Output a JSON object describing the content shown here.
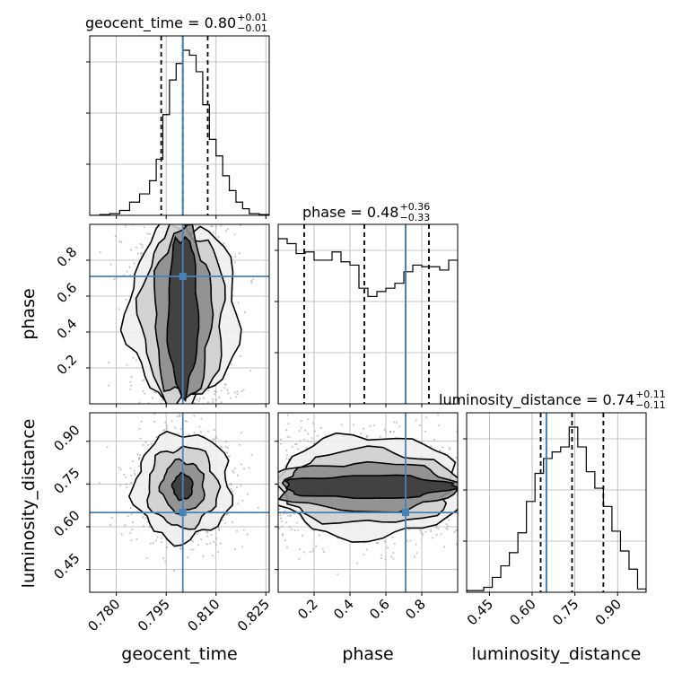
{
  "chart_data": {
    "type": "corner",
    "parameters": [
      "geocent_time",
      "phase",
      "luminosity_distance"
    ],
    "ranges": [
      [
        0.772,
        0.826
      ],
      [
        0.0,
        1.0
      ],
      [
        0.37,
        1.0
      ]
    ],
    "truths": [
      0.8,
      0.71,
      0.65
    ],
    "truth_color": "#4682b4",
    "grid": true,
    "titles": [
      {
        "label": "geocent_time",
        "value": "0.80",
        "plus": "+0.01",
        "minus": "−0.01"
      },
      {
        "label": "phase",
        "value": "0.48",
        "plus": "+0.36",
        "minus": "−0.33"
      },
      {
        "label": "luminosity_distance",
        "value": "0.74",
        "plus": "+0.11",
        "minus": "−0.11"
      }
    ],
    "ticks": [
      {
        "values": [
          0.78,
          0.795,
          0.81,
          0.825
        ],
        "labels": [
          "0.780",
          "0.795",
          "0.810",
          "0.825"
        ]
      },
      {
        "values": [
          0.2,
          0.4,
          0.6,
          0.8
        ],
        "labels": [
          "0.2",
          "0.4",
          "0.6",
          "0.8"
        ]
      },
      {
        "values": [
          0.45,
          0.6,
          0.75,
          0.9
        ],
        "labels": [
          "0.45",
          "0.60",
          "0.75",
          "0.90"
        ]
      }
    ],
    "quantiles": [
      [
        0.7935,
        0.8,
        0.8075
      ],
      [
        0.145,
        0.48,
        0.84
      ],
      [
        0.63,
        0.74,
        0.85
      ]
    ],
    "histograms": [
      {
        "edges": [
          0.772,
          0.775,
          0.778,
          0.781,
          0.784,
          0.787,
          0.79,
          0.792,
          0.794,
          0.796,
          0.798,
          0.8,
          0.802,
          0.804,
          0.806,
          0.808,
          0.81,
          0.812,
          0.814,
          0.816,
          0.818,
          0.82,
          0.823,
          0.826
        ],
        "counts": [
          0,
          0.005,
          0.01,
          0.03,
          0.08,
          0.13,
          0.21,
          0.34,
          0.61,
          0.82,
          0.92,
          1.0,
          0.97,
          0.87,
          0.67,
          0.46,
          0.36,
          0.24,
          0.15,
          0.08,
          0.04,
          0.01,
          0.005
        ]
      },
      {
        "edges": [
          0.0,
          0.05,
          0.1,
          0.15,
          0.2,
          0.25,
          0.3,
          0.35,
          0.4,
          0.45,
          0.5,
          0.55,
          0.6,
          0.65,
          0.7,
          0.75,
          0.8,
          0.85,
          0.9,
          0.95,
          1.0
        ],
        "counts": [
          1.0,
          0.97,
          0.91,
          0.92,
          0.87,
          0.87,
          0.92,
          0.86,
          0.84,
          0.7,
          0.65,
          0.68,
          0.7,
          0.73,
          0.8,
          0.84,
          0.83,
          0.83,
          0.81,
          0.87
        ]
      },
      {
        "edges": [
          0.37,
          0.4,
          0.43,
          0.46,
          0.49,
          0.52,
          0.55,
          0.58,
          0.61,
          0.64,
          0.67,
          0.7,
          0.73,
          0.76,
          0.79,
          0.82,
          0.85,
          0.88,
          0.91,
          0.94,
          0.97,
          1.0
        ],
        "counts": [
          0.01,
          0.01,
          0.03,
          0.09,
          0.16,
          0.24,
          0.36,
          0.55,
          0.72,
          0.81,
          0.85,
          0.88,
          1.0,
          0.88,
          0.73,
          0.63,
          0.52,
          0.37,
          0.25,
          0.14,
          0.02
        ]
      }
    ],
    "contours": [
      {
        "pair": [
          0,
          1
        ]
      },
      {
        "pair": [
          0,
          2
        ]
      },
      {
        "pair": [
          1,
          2
        ]
      }
    ]
  }
}
